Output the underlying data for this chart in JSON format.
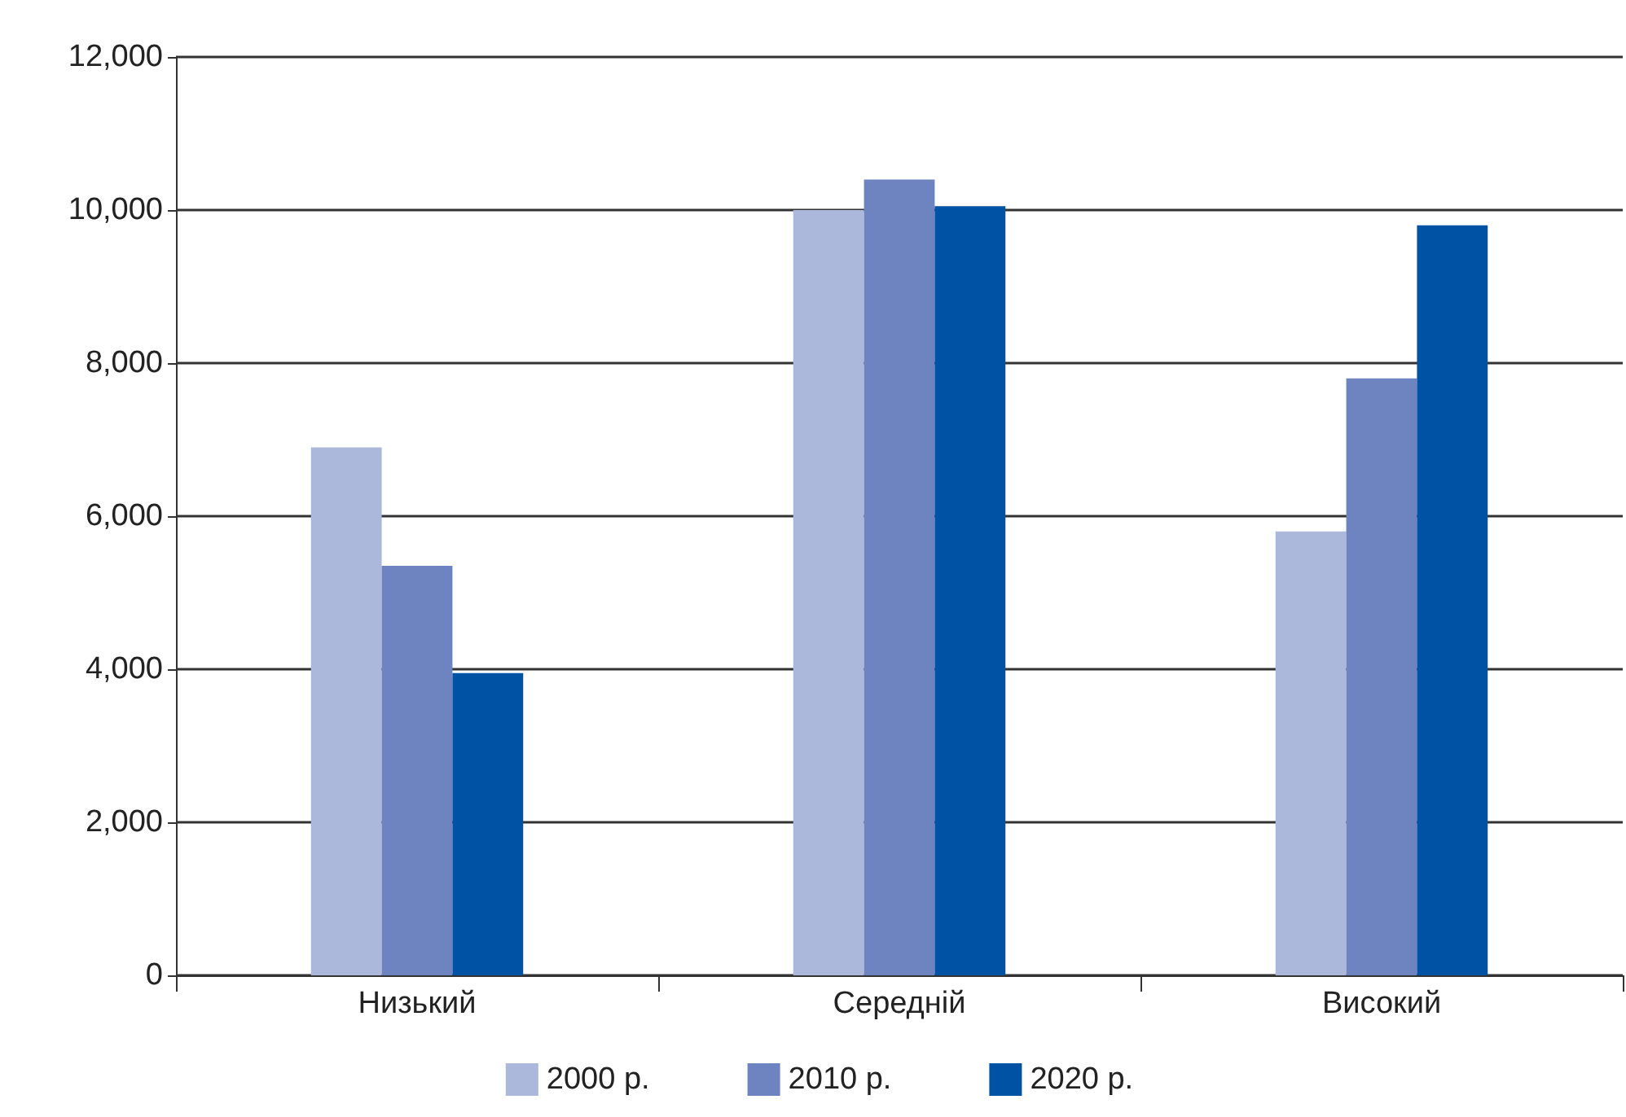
{
  "chart_data": {
    "type": "bar",
    "categories": [
      "Низький",
      "Середній",
      "Високий"
    ],
    "series": [
      {
        "name": "2000 р.",
        "color": "#abb8db",
        "values": [
          6900,
          10000,
          5800
        ]
      },
      {
        "name": "2010 р.",
        "color": "#6e84c0",
        "values": [
          5350,
          10400,
          7800
        ]
      },
      {
        "name": "2020 р.",
        "color": "#0052a5",
        "values": [
          3950,
          10050,
          9800
        ]
      }
    ],
    "ylim": [
      0,
      12000
    ],
    "yticks": [
      {
        "value": 0,
        "label": "0"
      },
      {
        "value": 2000,
        "label": "2,000"
      },
      {
        "value": 4000,
        "label": "4,000"
      },
      {
        "value": 6000,
        "label": "6,000"
      },
      {
        "value": 8000,
        "label": "8,000"
      },
      {
        "value": 10000,
        "label": "10,000"
      },
      {
        "value": 12000,
        "label": "12,000"
      }
    ],
    "grid": "y",
    "legend": "bottom"
  }
}
